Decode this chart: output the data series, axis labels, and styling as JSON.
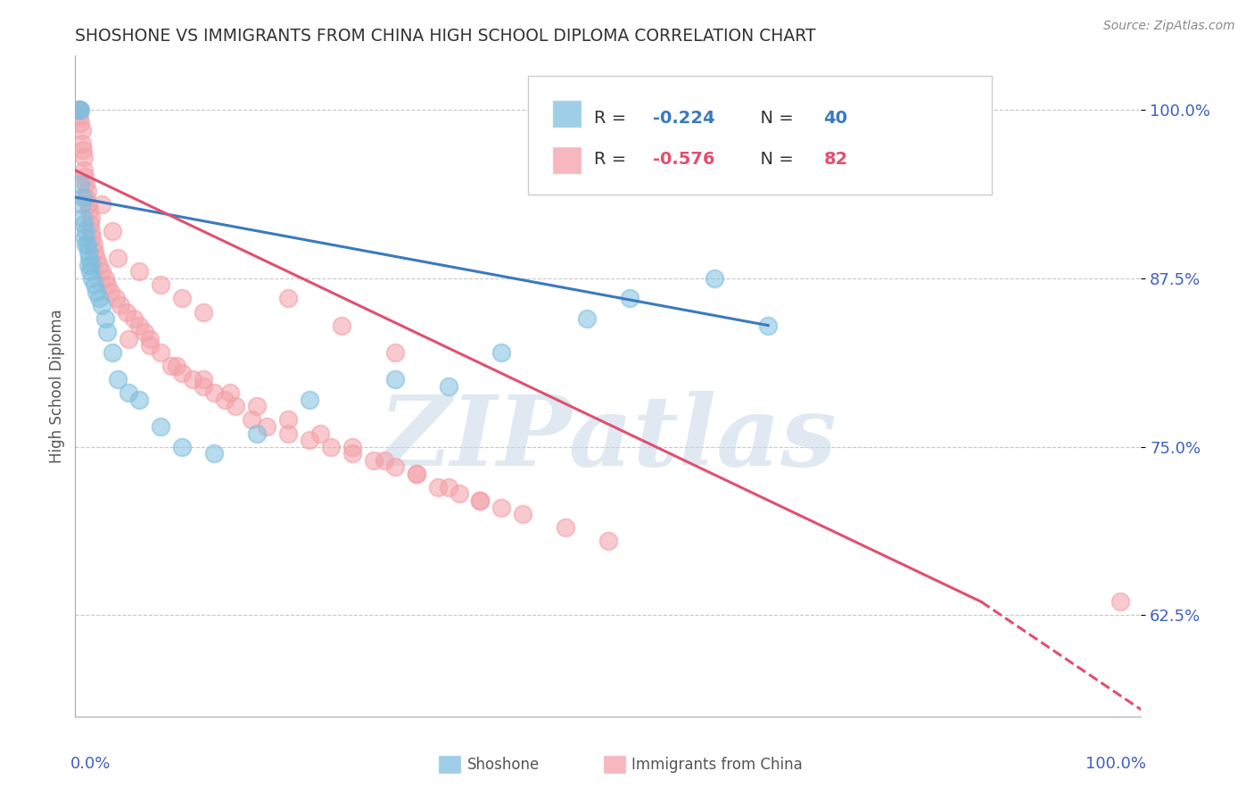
{
  "title": "SHOSHONE VS IMMIGRANTS FROM CHINA HIGH SCHOOL DIPLOMA CORRELATION CHART",
  "source": "Source: ZipAtlas.com",
  "ylabel": "High School Diploma",
  "ytick_vals": [
    62.5,
    75.0,
    87.5,
    100.0
  ],
  "ytick_labels": [
    "62.5%",
    "75.0%",
    "87.5%",
    "100.0%"
  ],
  "ylim": [
    55.0,
    104.0
  ],
  "xlim": [
    0.0,
    1.0
  ],
  "background_color": "#ffffff",
  "watermark_text": "ZIPatlas",
  "watermark_color": "#c8d8e8",
  "watermark_alpha": 0.55,
  "shoshone_color": "#7fbfdf",
  "china_color": "#f4a0a8",
  "line_blue_color": "#3a7abf",
  "line_pink_color": "#e05070",
  "grid_color": "#c8c8c8",
  "title_color": "#333333",
  "ylabel_color": "#555555",
  "tick_color": "#4060c0",
  "legend_R1": "-0.224",
  "legend_N1": "40",
  "legend_R2": "-0.576",
  "legend_N2": "82",
  "blue_line_x0": 0.0,
  "blue_line_y0": 93.5,
  "blue_line_x1": 0.65,
  "blue_line_y1": 84.0,
  "pink_line_x0": 0.0,
  "pink_line_y0": 95.5,
  "pink_line_x1_solid": 0.85,
  "pink_line_y1_solid": 63.5,
  "pink_line_x1_dash": 1.0,
  "pink_line_y1_dash": 55.5,
  "sho_x": [
    0.003,
    0.004,
    0.005,
    0.005,
    0.006,
    0.007,
    0.007,
    0.008,
    0.009,
    0.01,
    0.01,
    0.011,
    0.012,
    0.012,
    0.013,
    0.014,
    0.015,
    0.016,
    0.018,
    0.02,
    0.022,
    0.025,
    0.028,
    0.03,
    0.035,
    0.04,
    0.05,
    0.06,
    0.08,
    0.1,
    0.13,
    0.17,
    0.22,
    0.3,
    0.35,
    0.4,
    0.48,
    0.52,
    0.6,
    0.65
  ],
  "sho_y": [
    100.0,
    100.0,
    100.0,
    94.5,
    93.0,
    93.5,
    92.0,
    91.5,
    90.5,
    90.0,
    91.0,
    90.0,
    89.5,
    88.5,
    89.0,
    88.0,
    88.5,
    87.5,
    87.0,
    86.5,
    86.0,
    85.5,
    84.5,
    83.5,
    82.0,
    80.0,
    79.0,
    78.5,
    76.5,
    75.0,
    74.5,
    76.0,
    78.5,
    80.0,
    79.5,
    82.0,
    84.5,
    86.0,
    87.5,
    84.0
  ],
  "china_x": [
    0.003,
    0.004,
    0.004,
    0.005,
    0.006,
    0.006,
    0.007,
    0.008,
    0.008,
    0.009,
    0.01,
    0.01,
    0.011,
    0.012,
    0.013,
    0.014,
    0.015,
    0.015,
    0.016,
    0.017,
    0.018,
    0.02,
    0.022,
    0.025,
    0.028,
    0.03,
    0.033,
    0.038,
    0.042,
    0.048,
    0.055,
    0.06,
    0.065,
    0.07,
    0.08,
    0.09,
    0.1,
    0.11,
    0.12,
    0.13,
    0.14,
    0.15,
    0.165,
    0.18,
    0.2,
    0.22,
    0.24,
    0.26,
    0.28,
    0.3,
    0.32,
    0.34,
    0.36,
    0.38,
    0.4,
    0.05,
    0.07,
    0.095,
    0.12,
    0.145,
    0.17,
    0.2,
    0.23,
    0.26,
    0.29,
    0.32,
    0.35,
    0.38,
    0.42,
    0.46,
    0.5,
    0.2,
    0.25,
    0.3,
    0.04,
    0.06,
    0.08,
    0.1,
    0.12,
    0.98,
    0.025,
    0.035
  ],
  "china_y": [
    100.0,
    100.0,
    99.5,
    99.0,
    98.5,
    97.5,
    97.0,
    96.5,
    95.5,
    95.0,
    94.5,
    93.5,
    94.0,
    93.0,
    92.5,
    91.5,
    92.0,
    91.0,
    90.5,
    90.0,
    89.5,
    89.0,
    88.5,
    88.0,
    87.5,
    87.0,
    86.5,
    86.0,
    85.5,
    85.0,
    84.5,
    84.0,
    83.5,
    83.0,
    82.0,
    81.0,
    80.5,
    80.0,
    79.5,
    79.0,
    78.5,
    78.0,
    77.0,
    76.5,
    76.0,
    75.5,
    75.0,
    74.5,
    74.0,
    73.5,
    73.0,
    72.0,
    71.5,
    71.0,
    70.5,
    83.0,
    82.5,
    81.0,
    80.0,
    79.0,
    78.0,
    77.0,
    76.0,
    75.0,
    74.0,
    73.0,
    72.0,
    71.0,
    70.0,
    69.0,
    68.0,
    86.0,
    84.0,
    82.0,
    89.0,
    88.0,
    87.0,
    86.0,
    85.0,
    63.5,
    93.0,
    91.0
  ]
}
